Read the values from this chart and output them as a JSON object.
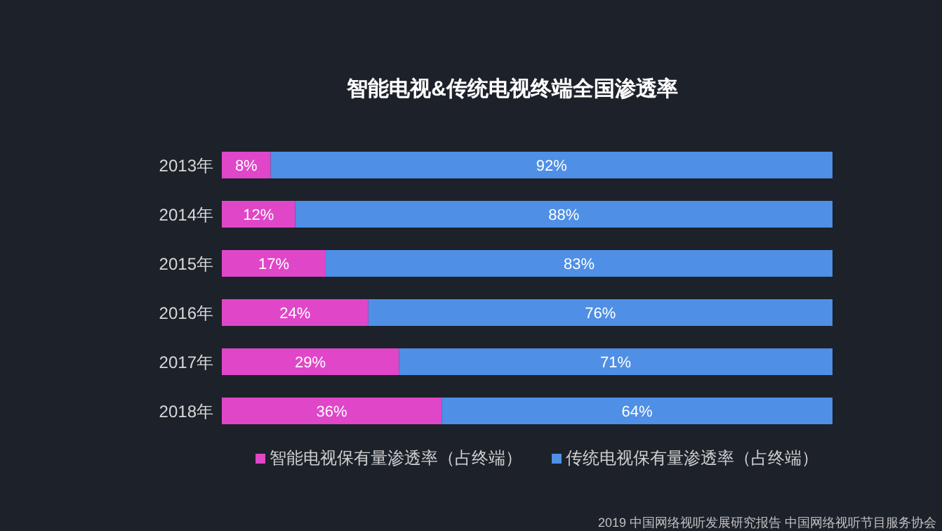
{
  "chart_data": {
    "type": "bar",
    "orientation": "horizontal",
    "stacked": true,
    "legend": "bottom",
    "title": "智能电视&传统电视终端全国渗透率",
    "categories": [
      "2013年",
      "2014年",
      "2015年",
      "2016年",
      "2017年",
      "2018年"
    ],
    "series": [
      {
        "name": "智能电视保有量渗透率（占终端）",
        "color": "#e046c8",
        "values": [
          8,
          12,
          17,
          24,
          29,
          36
        ],
        "value_labels": [
          "8%",
          "12%",
          "17%",
          "24%",
          "29%",
          "36%"
        ]
      },
      {
        "name": "传统电视保有量渗透率（占终端）",
        "color": "#4f8fe6",
        "values": [
          92,
          88,
          83,
          76,
          71,
          64
        ],
        "value_labels": [
          "92%",
          "88%",
          "83%",
          "76%",
          "71%",
          "64%"
        ]
      }
    ],
    "annotations": [
      "2019 中国网络视听发展研究报告 中国网络视听节目服务协会"
    ]
  }
}
